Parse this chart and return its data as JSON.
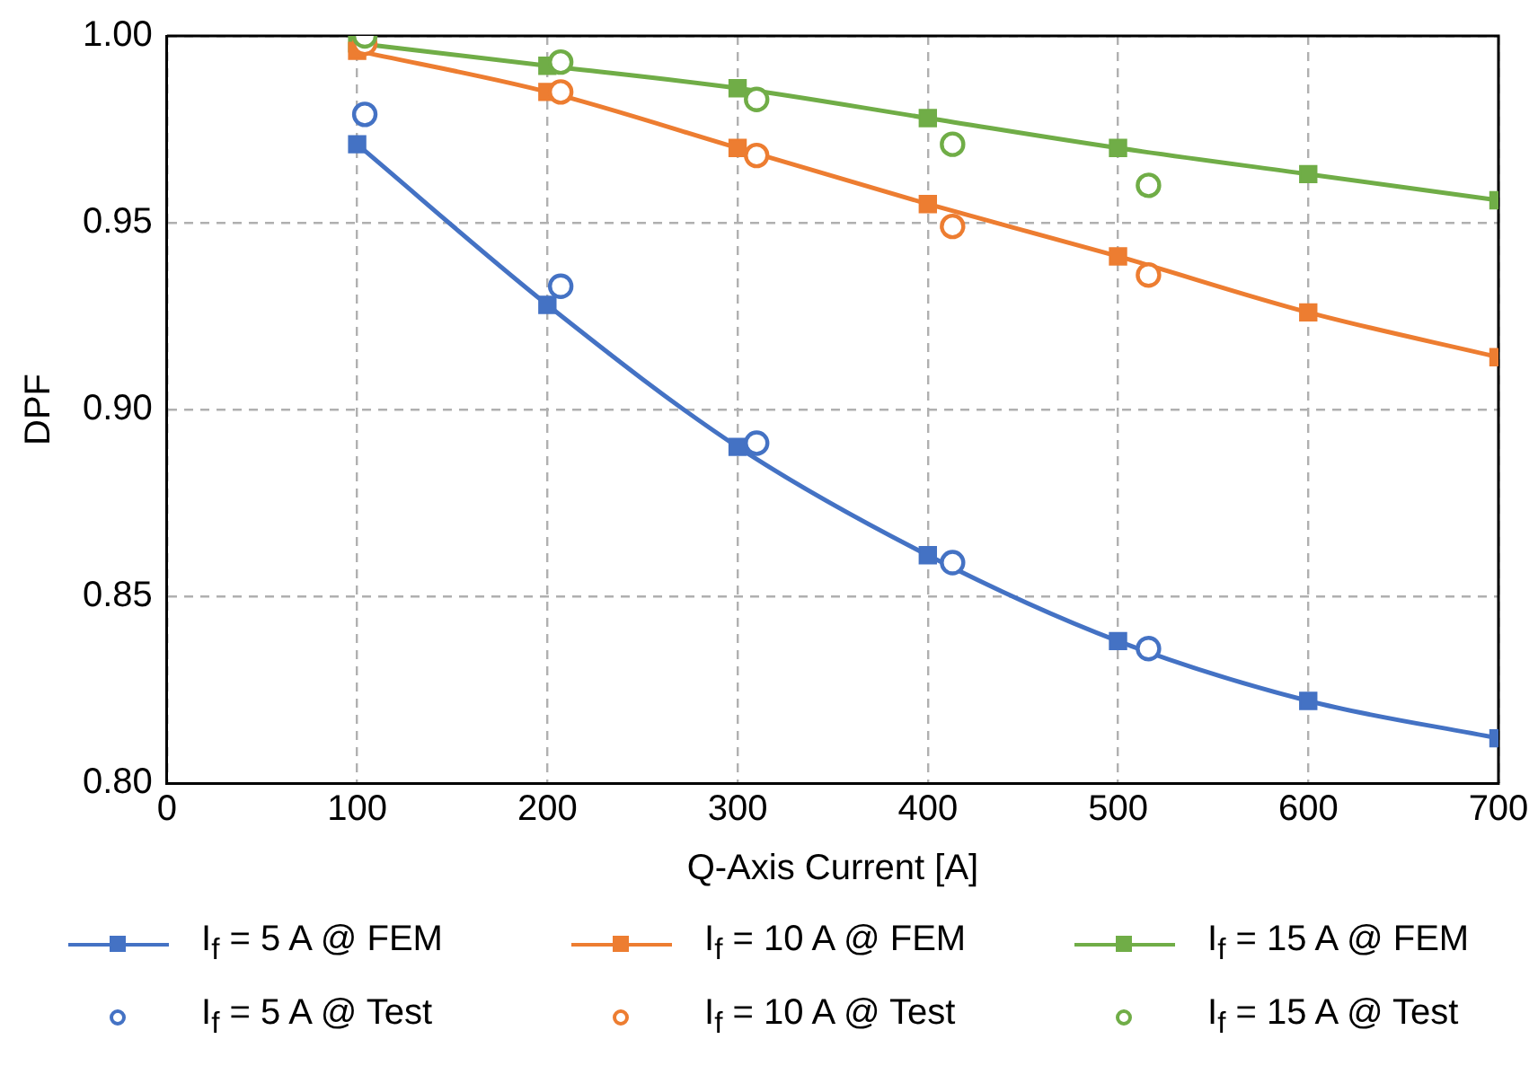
{
  "chart_data": {
    "type": "line",
    "xlabel": "Q-Axis Current [A]",
    "ylabel": "DPF",
    "xlim": [
      0,
      700
    ],
    "xticks": [
      0,
      100,
      200,
      300,
      400,
      500,
      600,
      700
    ],
    "ylim": [
      0.8,
      1.0
    ],
    "yticks": [
      {
        "value": 0.8,
        "label": "0.80"
      },
      {
        "value": 0.85,
        "label": "0.85"
      },
      {
        "value": 0.9,
        "label": "0.90"
      },
      {
        "value": 0.95,
        "label": "0.95"
      },
      {
        "value": 1.0,
        "label": "1.00"
      }
    ],
    "grid": true,
    "legend": "bottom",
    "line_style": "solid",
    "series": [
      {
        "name": "I$_{f}$ = 5 A @ FEM",
        "type": "line",
        "marker": "square",
        "color": "#4472c4",
        "x": [
          100,
          200,
          300,
          400,
          500,
          600,
          700
        ],
        "values": [
          0.971,
          0.928,
          0.89,
          0.861,
          0.838,
          0.822,
          0.812
        ]
      },
      {
        "name": "I$_{f}$ = 10 A @ FEM",
        "marker": "square",
        "color": "#ed7d31",
        "x": [
          100,
          200,
          300,
          400,
          500,
          600,
          700
        ],
        "values": [
          0.996,
          0.985,
          0.97,
          0.955,
          0.941,
          0.926,
          0.914
        ]
      },
      {
        "name": "I$_{f}$ = 15 A @ FEM",
        "marker": "square",
        "color": "#70ad47",
        "x": [
          100,
          200,
          300,
          400,
          500,
          600,
          700
        ],
        "values": [
          0.998,
          0.992,
          0.986,
          0.978,
          0.97,
          0.963,
          0.956
        ]
      },
      {
        "name": "I$_{f}$ = 5 A @ Test",
        "type": "scatter",
        "marker": "circle",
        "color": "#4472c4",
        "x": [
          104,
          207,
          310,
          413,
          516
        ],
        "values": [
          0.979,
          0.933,
          0.891,
          0.859,
          0.836
        ]
      },
      {
        "name": "I$_{f}$ = 10 A @ Test",
        "type": "scatter",
        "marker": "circle",
        "color": "#ed7d31",
        "x": [
          104,
          207,
          310,
          413,
          516
        ],
        "values": [
          0.998,
          0.985,
          0.968,
          0.949,
          0.936
        ]
      },
      {
        "name": "I$_{f}$ = 15 A @ Test",
        "type": "scatter",
        "marker": "circle",
        "color": "#70ad47",
        "x": [
          104,
          207,
          310,
          413,
          516
        ],
        "values": [
          1.0,
          0.993,
          0.983,
          0.971,
          0.96
        ]
      }
    ]
  }
}
